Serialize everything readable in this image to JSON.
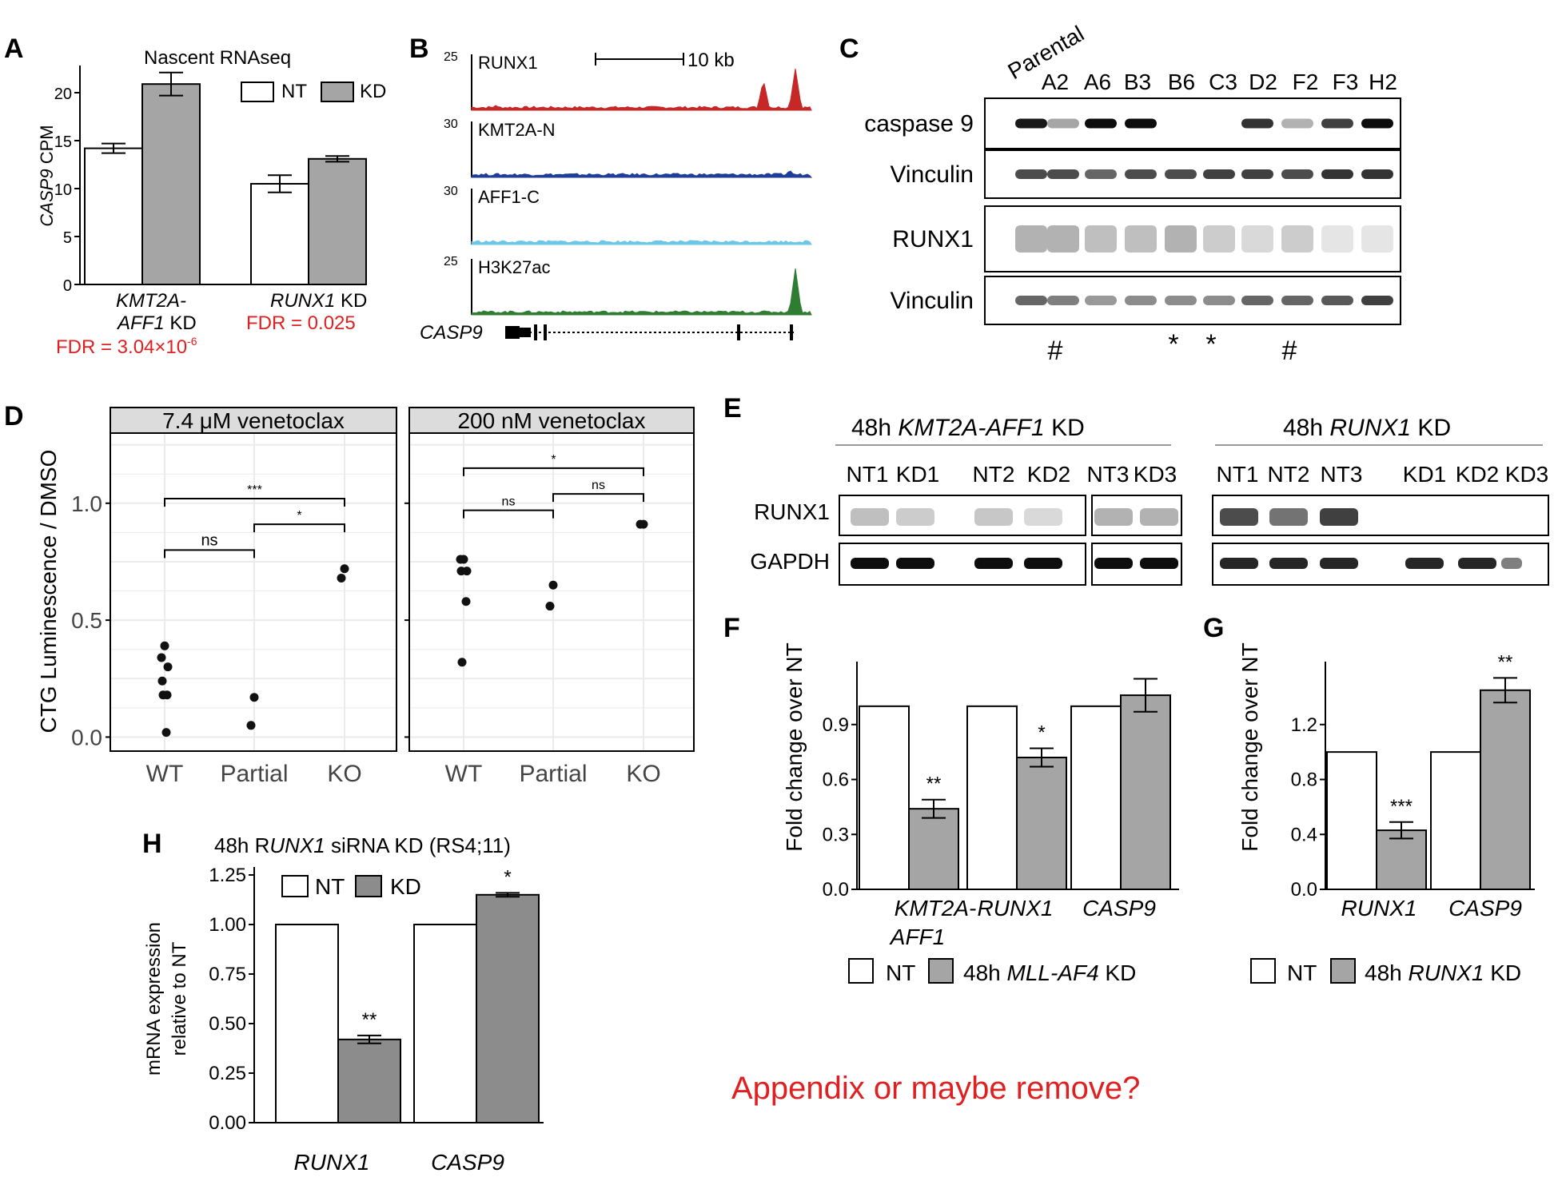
{
  "colors": {
    "nt": "#ffffff",
    "kd": "#a5a5a5",
    "kd_dark": "#8c8c8c",
    "red": "#e02020",
    "track_runx1": "#c62828",
    "track_kmt2a": "#1f3d99",
    "track_aff1": "#6ec6e6",
    "track_h3k27ac": "#2e7d32",
    "facet": "#dcdcdc",
    "grid": "#ebebeb"
  },
  "panels": {
    "A": {
      "letter": "A",
      "title": "Nascent RNAseq",
      "ylabel_italic": "CASP9",
      "ylabel_rest": " CPM",
      "legend": [
        "NT",
        "KD"
      ],
      "group1_line1": "KMT2A-",
      "group1_line2a": "AFF1",
      "group1_line2b": " KD",
      "group2_a": "RUNX1",
      "group2_b": " KD",
      "fdr1": "FDR = 3.04×10",
      "fdr1_exp": "-6",
      "fdr2": "FDR = 0.025",
      "yticks": [
        "0",
        "5",
        "10",
        "15",
        "20"
      ]
    },
    "B": {
      "letter": "B",
      "scale_label": "10 kb",
      "gene": "CASP9",
      "tracks": [
        {
          "name": "RUNX1",
          "max": "25"
        },
        {
          "name": "KMT2A-N",
          "max": "30"
        },
        {
          "name": "AFF1-C",
          "max": "30"
        },
        {
          "name": "H3K27ac",
          "max": "25"
        }
      ]
    },
    "C": {
      "letter": "C",
      "lanes": [
        "Parental",
        "A2",
        "A6",
        "B3",
        "B6",
        "C3",
        "D2",
        "F2",
        "F3",
        "H2"
      ],
      "rows": [
        "caspase 9",
        "Vinculin",
        "RUNX1",
        "Vinculin"
      ],
      "marks": [
        "#",
        "*",
        "*",
        "#"
      ]
    },
    "D": {
      "letter": "D",
      "facets": [
        "7.4 μM venetoclax",
        "200 nM venetoclax"
      ],
      "ylabel": "CTG Luminescence / DMSO",
      "xticks": [
        "WT",
        "Partial",
        "KO"
      ],
      "yticks": [
        "0.0",
        "0.5",
        "1.0"
      ],
      "sig_left": [
        "***",
        "ns",
        "*"
      ],
      "sig_right": [
        "*",
        "ns",
        "ns"
      ]
    },
    "E": {
      "letter": "E",
      "title_left_a": "48h ",
      "title_left_b": "KMT2A-AFF1",
      "title_left_c": " KD",
      "title_right_a": "48h ",
      "title_right_b": "RUNX1",
      "title_right_c": " KD",
      "lanes_left": [
        "NT1",
        "KD1",
        "NT2",
        "KD2",
        "NT3",
        "KD3"
      ],
      "lanes_right": [
        "NT1",
        "NT2",
        "NT3",
        "KD1",
        "KD2",
        "KD3"
      ],
      "rows": [
        "RUNX1",
        "GAPDH"
      ]
    },
    "F": {
      "letter": "F",
      "ylabel": "Fold change over NT",
      "yticks": [
        "0.0",
        "0.3",
        "0.6",
        "0.9"
      ],
      "groups": [
        "KMT2A-",
        "AFF1",
        "RUNX1",
        "CASP9"
      ],
      "stars": [
        "**",
        "*"
      ],
      "legend_nt": "NT",
      "legend_kd_a": "48h ",
      "legend_kd_b": "MLL-AF4",
      "legend_kd_c": " KD"
    },
    "G": {
      "letter": "G",
      "ylabel": "Fold change over NT",
      "yticks": [
        "0.0",
        "0.4",
        "0.8",
        "1.2"
      ],
      "groups": [
        "RUNX1",
        "CASP9"
      ],
      "stars": [
        "***",
        "**"
      ],
      "legend_nt": "NT",
      "legend_kd_a": "48h ",
      "legend_kd_b": "RUNX1",
      "legend_kd_c": " KD"
    },
    "H": {
      "letter": "H",
      "title_a": "48h R",
      "title_b": "UNX1",
      "title_c": " siRNA KD (RS4;11)",
      "ylabel1": "mRNA expression",
      "ylabel2": "relative to NT",
      "yticks": [
        "0.00",
        "0.25",
        "0.50",
        "0.75",
        "1.00",
        "1.25"
      ],
      "groups": [
        "RUNX1",
        "CASP9"
      ],
      "stars": [
        "**",
        "*"
      ],
      "legend": [
        "NT",
        "KD"
      ]
    }
  },
  "note": "Appendix or maybe remove?",
  "chart_data": [
    {
      "panel": "A",
      "type": "bar",
      "title": "Nascent RNAseq",
      "ylabel": "CASP9 CPM",
      "ylim": [
        0,
        22
      ],
      "categories": [
        "KMT2A-AFF1 KD",
        "RUNX1 KD"
      ],
      "series": [
        {
          "name": "NT",
          "values": [
            14.2,
            10.5
          ],
          "errors": [
            0.5,
            0.9
          ]
        },
        {
          "name": "KD",
          "values": [
            20.9,
            13.1
          ],
          "errors": [
            1.2,
            0.3
          ]
        }
      ]
    },
    {
      "panel": "D",
      "type": "scatter",
      "facet": "7.4 μM venetoclax",
      "ylabel": "CTG Luminescence / DMSO",
      "categories": [
        "WT",
        "Partial",
        "KO"
      ],
      "ylim": [
        0,
        1.3
      ],
      "points": [
        {
          "x": "WT",
          "y": [
            0.39,
            0.34,
            0.3,
            0.24,
            0.18,
            0.18,
            0.02
          ]
        },
        {
          "x": "Partial",
          "y": [
            0.17,
            0.05
          ]
        },
        {
          "x": "KO",
          "y": [
            0.72,
            0.68
          ]
        }
      ]
    },
    {
      "panel": "D",
      "type": "scatter",
      "facet": "200 nM venetoclax",
      "ylabel": "CTG Luminescence / DMSO",
      "categories": [
        "WT",
        "Partial",
        "KO"
      ],
      "ylim": [
        0,
        1.3
      ],
      "points": [
        {
          "x": "WT",
          "y": [
            0.76,
            0.76,
            0.71,
            0.71,
            0.58,
            0.32
          ]
        },
        {
          "x": "Partial",
          "y": [
            0.65,
            0.56
          ]
        },
        {
          "x": "KO",
          "y": [
            0.91,
            0.91
          ]
        }
      ]
    },
    {
      "panel": "F",
      "type": "bar",
      "ylabel": "Fold change over NT",
      "ylim": [
        0,
        1.2
      ],
      "categories": [
        "KMT2A-AFF1",
        "RUNX1",
        "CASP9"
      ],
      "series": [
        {
          "name": "NT",
          "values": [
            1.0,
            1.0,
            1.0
          ],
          "errors": [
            0,
            0,
            0
          ]
        },
        {
          "name": "48h MLL-AF4 KD",
          "values": [
            0.44,
            0.72,
            1.06
          ],
          "errors": [
            0.05,
            0.05,
            0.09
          ]
        }
      ]
    },
    {
      "panel": "G",
      "type": "bar",
      "ylabel": "Fold change over NT",
      "ylim": [
        0,
        1.6
      ],
      "categories": [
        "RUNX1",
        "CASP9"
      ],
      "series": [
        {
          "name": "NT",
          "values": [
            1.0,
            1.0
          ],
          "errors": [
            0,
            0
          ]
        },
        {
          "name": "48h RUNX1 KD",
          "values": [
            0.43,
            1.45
          ],
          "errors": [
            0.06,
            0.09
          ]
        }
      ]
    },
    {
      "panel": "H",
      "type": "bar",
      "title": "48h RUNX1 siRNA KD (RS4;11)",
      "ylabel": "mRNA expression relative to NT",
      "ylim": [
        0,
        1.25
      ],
      "categories": [
        "RUNX1",
        "CASP9"
      ],
      "series": [
        {
          "name": "NT",
          "values": [
            1.0,
            1.0
          ],
          "errors": [
            0,
            0
          ]
        },
        {
          "name": "KD",
          "values": [
            0.42,
            1.15
          ],
          "errors": [
            0.02,
            0.01
          ]
        }
      ]
    }
  ]
}
